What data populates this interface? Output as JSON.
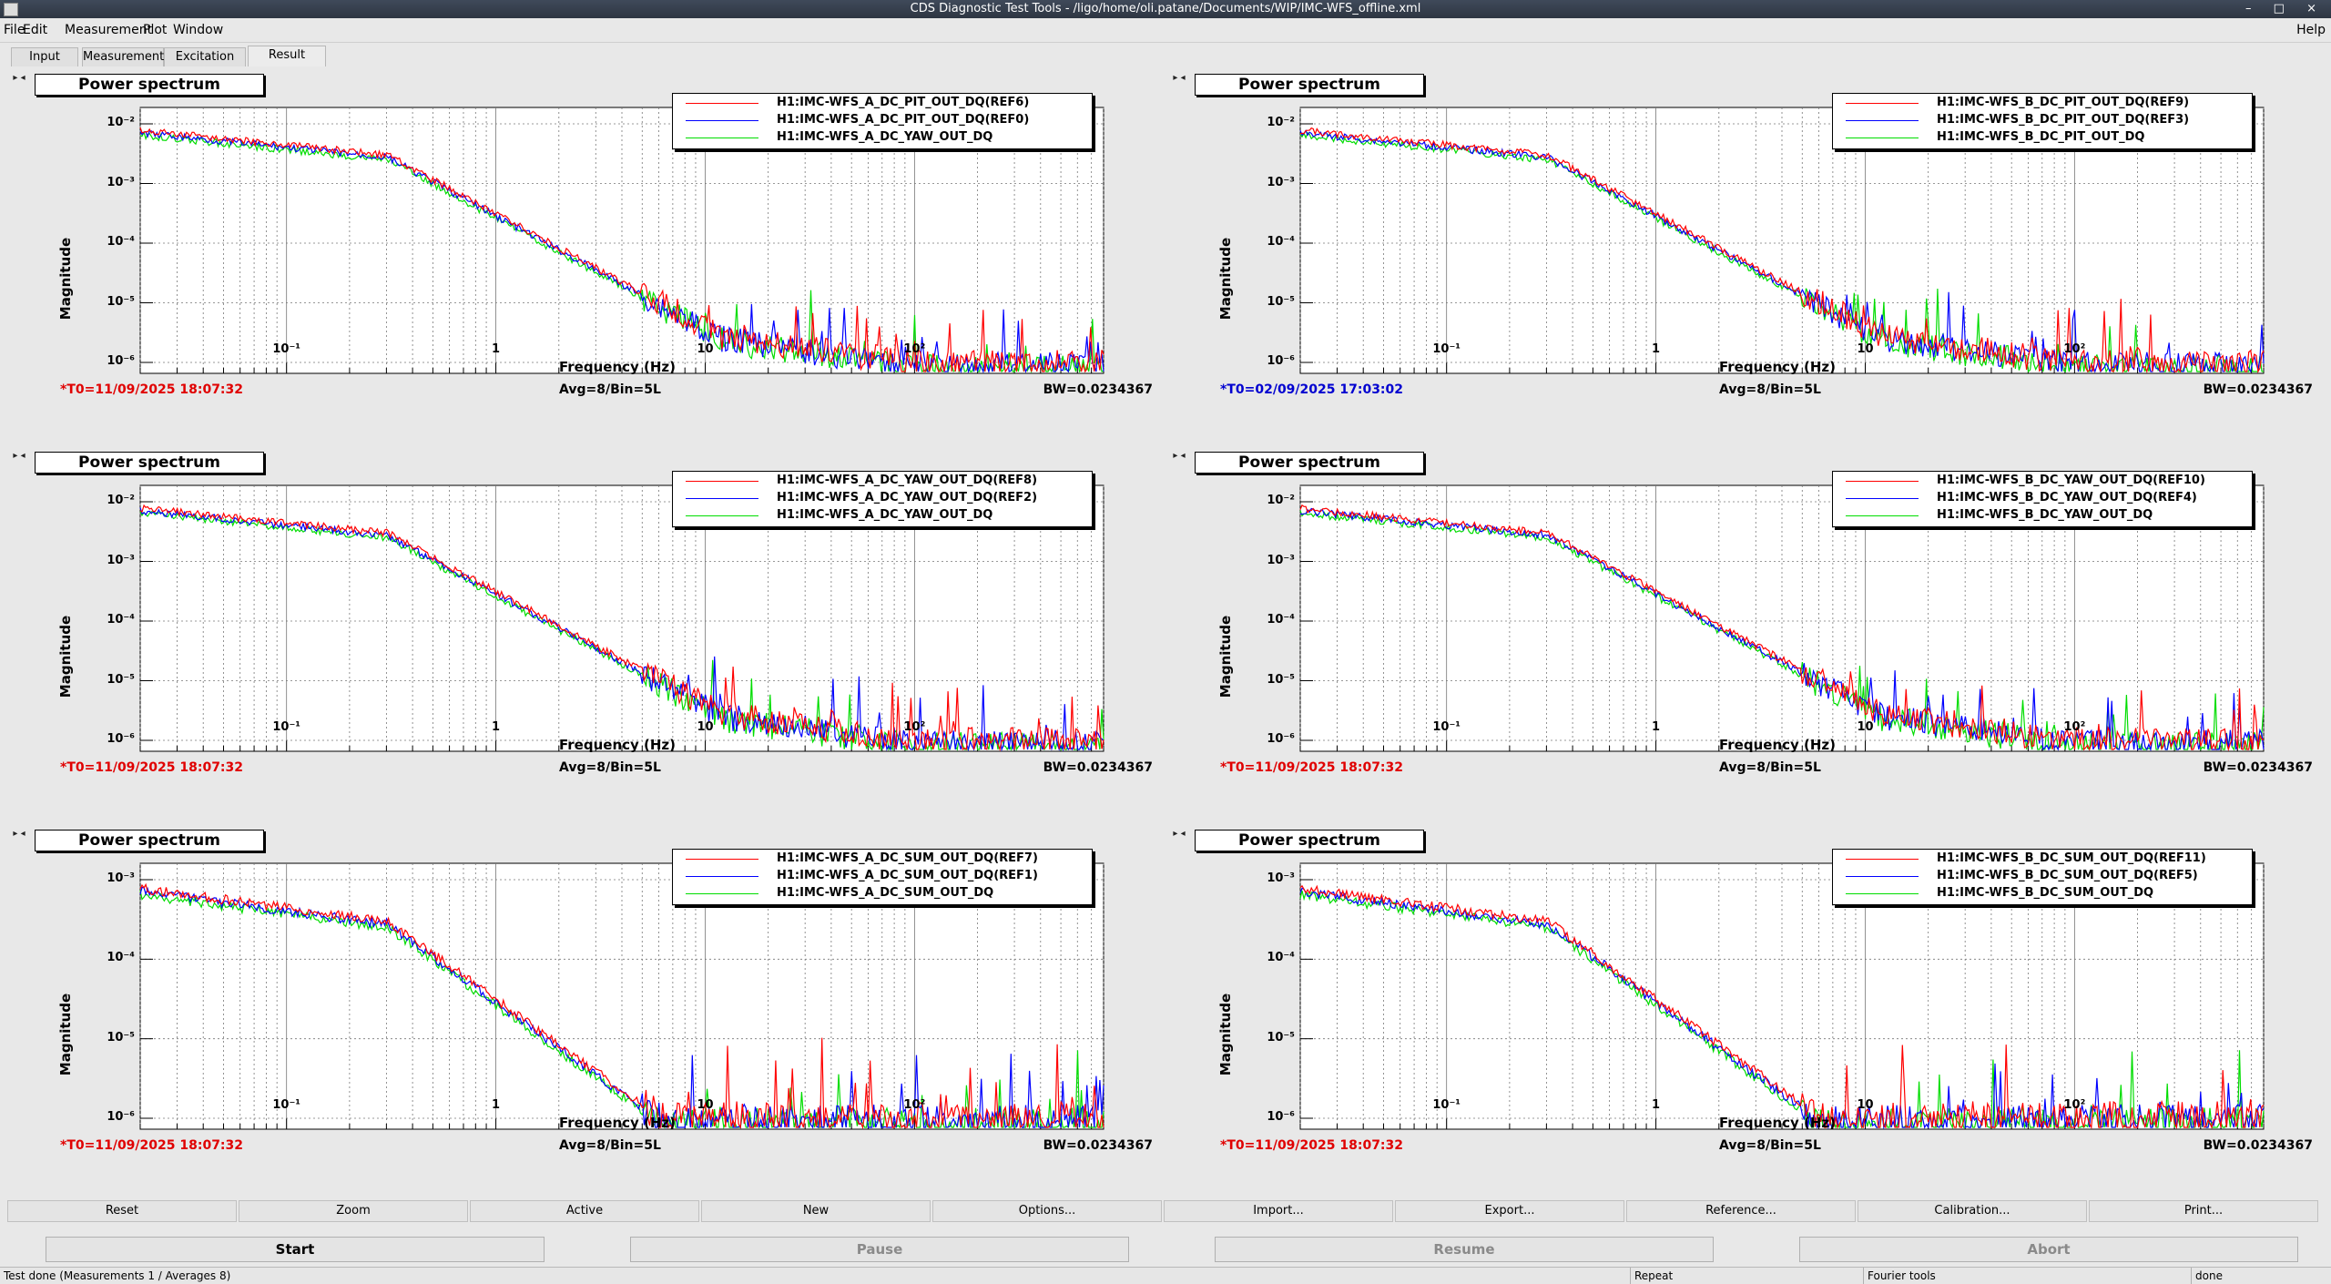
{
  "window": {
    "title": "CDS Diagnostic Test Tools - /ligo/home/oli.patane/Documents/WIP/IMC-WFS_offline.xml",
    "controls": "– □ ×"
  },
  "menu": {
    "items": [
      "File",
      "Edit",
      "Measurement",
      "Plot",
      "Window"
    ],
    "help": "Help"
  },
  "tabs": [
    "Input",
    "Measurement",
    "Excitation",
    "Result"
  ],
  "active_tab": "Result",
  "panels": [
    {
      "title": "Power spectrum",
      "legend": [
        "H1:IMC-WFS_A_DC_PIT_OUT_DQ(REF6)",
        "H1:IMC-WFS_A_DC_PIT_OUT_DQ(REF0)",
        "H1:IMC-WFS_A_DC_YAW_OUT_DQ"
      ],
      "ylabel": "Magnitude",
      "xlabel": "Frequency (Hz)",
      "yticks": [
        "10⁻²",
        "10⁻³",
        "10⁻⁴",
        "10⁻⁵",
        "10⁻⁶"
      ],
      "xticks": [
        "10⁻¹",
        "1",
        "10",
        "10²"
      ],
      "t0": "*T0=11/09/2025 18:07:32",
      "t0_color": "#e00000",
      "avg": "Avg=8/Bin=5L",
      "bw": "BW=0.0234367"
    },
    {
      "title": "Power spectrum",
      "legend": [
        "H1:IMC-WFS_B_DC_PIT_OUT_DQ(REF9)",
        "H1:IMC-WFS_B_DC_PIT_OUT_DQ(REF3)",
        "H1:IMC-WFS_B_DC_PIT_OUT_DQ"
      ],
      "ylabel": "Magnitude",
      "xlabel": "Frequency (Hz)",
      "yticks": [
        "10⁻²",
        "10⁻³",
        "10⁻⁴",
        "10⁻⁵",
        "10⁻⁶"
      ],
      "xticks": [
        "10⁻¹",
        "1",
        "10",
        "10²"
      ],
      "t0": "*T0=02/09/2025 17:03:02",
      "t0_color": "#0000d0",
      "avg": "Avg=8/Bin=5L",
      "bw": "BW=0.0234367"
    },
    {
      "title": "Power spectrum",
      "legend": [
        "H1:IMC-WFS_A_DC_YAW_OUT_DQ(REF8)",
        "H1:IMC-WFS_A_DC_YAW_OUT_DQ(REF2)",
        "H1:IMC-WFS_A_DC_YAW_OUT_DQ"
      ],
      "ylabel": "Magnitude",
      "xlabel": "Frequency (Hz)",
      "yticks": [
        "10⁻²",
        "10⁻³",
        "10⁻⁴",
        "10⁻⁵",
        "10⁻⁶"
      ],
      "xticks": [
        "10⁻¹",
        "1",
        "10",
        "10²"
      ],
      "t0": "*T0=11/09/2025 18:07:32",
      "t0_color": "#e00000",
      "avg": "Avg=8/Bin=5L",
      "bw": "BW=0.0234367"
    },
    {
      "title": "Power spectrum",
      "legend": [
        "H1:IMC-WFS_B_DC_YAW_OUT_DQ(REF10)",
        "H1:IMC-WFS_B_DC_YAW_OUT_DQ(REF4)",
        "H1:IMC-WFS_B_DC_YAW_OUT_DQ"
      ],
      "ylabel": "Magnitude",
      "xlabel": "Frequency (Hz)",
      "yticks": [
        "10⁻²",
        "10⁻³",
        "10⁻⁴",
        "10⁻⁵",
        "10⁻⁶"
      ],
      "xticks": [
        "10⁻¹",
        "1",
        "10",
        "10²"
      ],
      "t0": "*T0=11/09/2025 18:07:32",
      "t0_color": "#e00000",
      "avg": "Avg=8/Bin=5L",
      "bw": "BW=0.0234367"
    },
    {
      "title": "Power spectrum",
      "legend": [
        "H1:IMC-WFS_A_DC_SUM_OUT_DQ(REF7)",
        "H1:IMC-WFS_A_DC_SUM_OUT_DQ(REF1)",
        "H1:IMC-WFS_A_DC_SUM_OUT_DQ"
      ],
      "ylabel": "Magnitude",
      "xlabel": "Frequency (Hz)",
      "yticks": [
        "10⁻³",
        "10⁻⁴",
        "10⁻⁵",
        "10⁻⁶"
      ],
      "xticks": [
        "10⁻¹",
        "1",
        "10",
        "10²"
      ],
      "t0": "*T0=11/09/2025 18:07:32",
      "t0_color": "#e00000",
      "avg": "Avg=8/Bin=5L",
      "bw": "BW=0.0234367"
    },
    {
      "title": "Power spectrum",
      "legend": [
        "H1:IMC-WFS_B_DC_SUM_OUT_DQ(REF11)",
        "H1:IMC-WFS_B_DC_SUM_OUT_DQ(REF5)",
        "H1:IMC-WFS_B_DC_SUM_OUT_DQ"
      ],
      "ylabel": "Magnitude",
      "xlabel": "Frequency (Hz)",
      "yticks": [
        "10⁻³",
        "10⁻⁴",
        "10⁻⁵",
        "10⁻⁶"
      ],
      "xticks": [
        "10⁻¹",
        "1",
        "10",
        "10²"
      ],
      "t0": "*T0=11/09/2025 18:07:32",
      "t0_color": "#e00000",
      "avg": "Avg=8/Bin=5L",
      "bw": "BW=0.0234367"
    }
  ],
  "series_colors": [
    "#ff0000",
    "#0000ff",
    "#00dd00"
  ],
  "plot_buttons": [
    "Reset",
    "Zoom",
    "Active",
    "New",
    "Options...",
    "Import...",
    "Export...",
    "Reference...",
    "Calibration...",
    "Print..."
  ],
  "control_buttons": [
    "Start",
    "Pause",
    "Resume",
    "Abort"
  ],
  "status": {
    "message": "Test done (Measurements 1 / Averages 8)",
    "mode": "Repeat",
    "tool": "Fourier tools",
    "state": "done"
  }
}
